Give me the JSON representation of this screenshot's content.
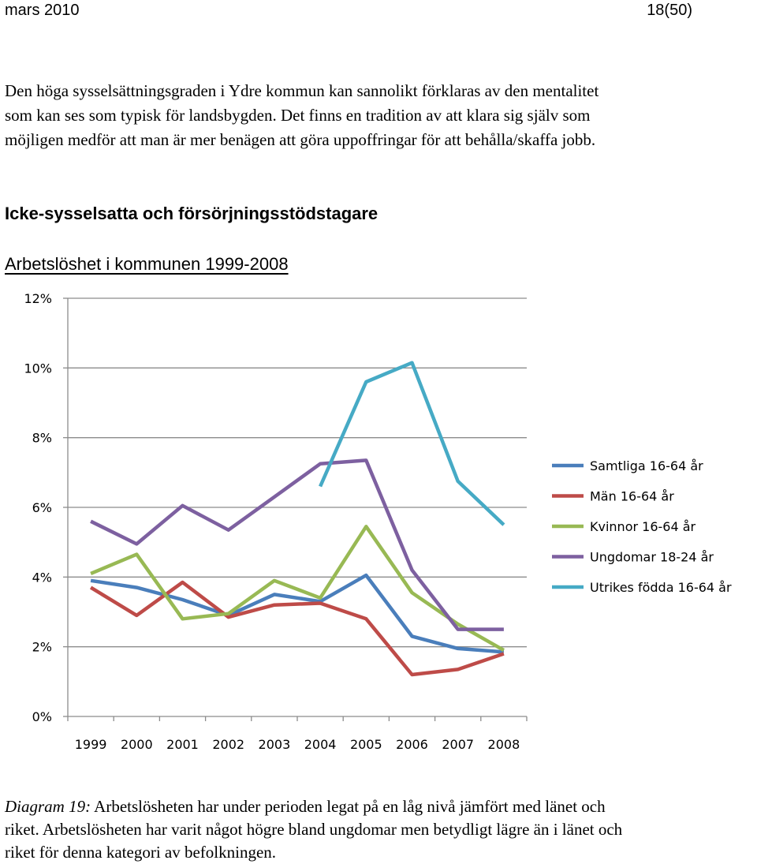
{
  "header": {
    "left": "mars 2010",
    "right": "18(50)"
  },
  "intro_lines": [
    "Den höga sysselsättningsgraden i Ydre kommun kan sannolikt förklaras av den mentalitet",
    "som kan ses som typisk för landsbygden. Det finns en tradition av att klara sig själv som",
    "möjligen medför att man är mer benägen att göra uppoffringar för att behålla/skaffa jobb."
  ],
  "section_heading": "Icke-sysselsatta och försörjningsstödstagare",
  "chart_data": {
    "type": "line",
    "title": "Arbetslöshet i kommunen 1999-2008",
    "categories": [
      "1999",
      "2000",
      "2001",
      "2002",
      "2003",
      "2004",
      "2005",
      "2006",
      "2007",
      "2008"
    ],
    "y_ticks": [
      "0%",
      "2%",
      "4%",
      "6%",
      "8%",
      "10%",
      "12%"
    ],
    "ylim": [
      0,
      12
    ],
    "y_unit": "%",
    "legend_position": "right",
    "grid": "horizontal",
    "series": [
      {
        "name": "Samtliga 16-64 år",
        "color": "#4a7ebb",
        "values": [
          3.9,
          3.7,
          3.35,
          2.9,
          3.5,
          3.3,
          4.05,
          2.3,
          1.95,
          1.85
        ]
      },
      {
        "name": "Män 16-64 år",
        "color": "#be4b48",
        "values": [
          3.7,
          2.9,
          3.85,
          2.85,
          3.2,
          3.25,
          2.8,
          1.2,
          1.35,
          1.8
        ]
      },
      {
        "name": "Kvinnor 16-64 år",
        "color": "#98b954",
        "values": [
          4.1,
          4.65,
          2.8,
          2.95,
          3.9,
          3.4,
          5.45,
          3.55,
          2.65,
          1.9
        ]
      },
      {
        "name": "Ungdomar 18-24 år",
        "color": "#7d60a0",
        "values": [
          5.6,
          4.95,
          6.05,
          5.35,
          6.3,
          7.25,
          7.35,
          4.2,
          2.5,
          2.5
        ]
      },
      {
        "name": "Utrikes födda 16-64 år",
        "color": "#46aac5",
        "values": [
          null,
          null,
          null,
          null,
          null,
          6.6,
          9.6,
          10.15,
          6.75,
          5.5
        ]
      }
    ]
  },
  "caption": {
    "label": "Diagram 19:",
    "line1": " Arbetslösheten har under perioden legat på en låg nivå jämfört med länet och",
    "line2": "riket. Arbetslösheten har varit något högre bland ungdomar men betydligt lägre än i länet och",
    "line3": "riket för denna kategori av befolkningen."
  }
}
